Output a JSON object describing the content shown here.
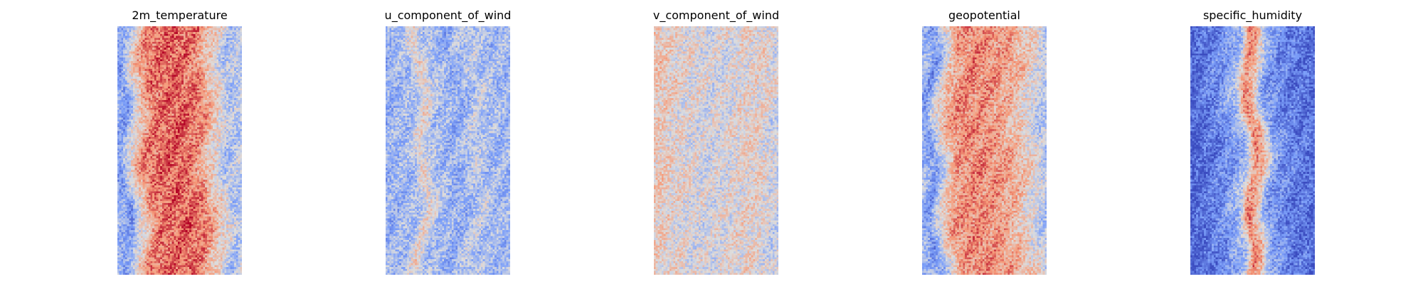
{
  "chart_data": [
    {
      "type": "heatmap",
      "title": "2m_temperature",
      "colormap": "coolwarm",
      "grid": false,
      "axes": "off",
      "grid_size": [
        64,
        128
      ],
      "value_range": [
        -1,
        1
      ],
      "approx_column_profile": [
        {
          "x": 0.0,
          "v": -0.35
        },
        {
          "x": 0.06,
          "v": -0.55
        },
        {
          "x": 0.12,
          "v": -0.1
        },
        {
          "x": 0.22,
          "v": 0.4
        },
        {
          "x": 0.28,
          "v": 0.6
        },
        {
          "x": 0.5,
          "v": 0.72
        },
        {
          "x": 0.68,
          "v": 0.55
        },
        {
          "x": 0.76,
          "v": 0.25
        },
        {
          "x": 0.84,
          "v": 0.05
        },
        {
          "x": 0.92,
          "v": -0.25
        },
        {
          "x": 1.0,
          "v": -0.15
        }
      ]
    },
    {
      "type": "heatmap",
      "title": "u_component_of_wind",
      "colormap": "coolwarm",
      "grid": false,
      "axes": "off",
      "grid_size": [
        64,
        128
      ],
      "value_range": [
        -1,
        1
      ],
      "approx_column_profile": [
        {
          "x": 0.0,
          "v": -0.35
        },
        {
          "x": 0.2,
          "v": -0.25
        },
        {
          "x": 0.28,
          "v": 0.1
        },
        {
          "x": 0.36,
          "v": -0.2
        },
        {
          "x": 0.55,
          "v": -0.4
        },
        {
          "x": 0.72,
          "v": -0.15
        },
        {
          "x": 0.85,
          "v": -0.3
        },
        {
          "x": 1.0,
          "v": -0.3
        }
      ]
    },
    {
      "type": "heatmap",
      "title": "v_component_of_wind",
      "colormap": "coolwarm",
      "grid": false,
      "axes": "off",
      "grid_size": [
        64,
        128
      ],
      "value_range": [
        -1,
        1
      ],
      "approx_column_profile": [
        {
          "x": 0.0,
          "v": 0.2
        },
        {
          "x": 0.2,
          "v": 0.05
        },
        {
          "x": 0.45,
          "v": -0.05
        },
        {
          "x": 0.7,
          "v": 0.05
        },
        {
          "x": 0.85,
          "v": 0.1
        },
        {
          "x": 1.0,
          "v": -0.1
        }
      ]
    },
    {
      "type": "heatmap",
      "title": "geopotential",
      "colormap": "coolwarm",
      "grid": false,
      "axes": "off",
      "grid_size": [
        64,
        128
      ],
      "value_range": [
        -1,
        1
      ],
      "approx_column_profile": [
        {
          "x": 0.0,
          "v": -0.3
        },
        {
          "x": 0.08,
          "v": -0.55
        },
        {
          "x": 0.15,
          "v": -0.1
        },
        {
          "x": 0.25,
          "v": 0.4
        },
        {
          "x": 0.4,
          "v": 0.55
        },
        {
          "x": 0.65,
          "v": 0.45
        },
        {
          "x": 0.8,
          "v": 0.25
        },
        {
          "x": 0.9,
          "v": 0.05
        },
        {
          "x": 1.0,
          "v": -0.2
        }
      ]
    },
    {
      "type": "heatmap",
      "title": "specific_humidity",
      "colormap": "coolwarm",
      "grid": false,
      "axes": "off",
      "grid_size": [
        64,
        128
      ],
      "value_range": [
        -1,
        1
      ],
      "approx_column_profile": [
        {
          "x": 0.0,
          "v": -0.85
        },
        {
          "x": 0.25,
          "v": -0.6
        },
        {
          "x": 0.4,
          "v": -0.25
        },
        {
          "x": 0.47,
          "v": 0.55
        },
        {
          "x": 0.53,
          "v": 0.35
        },
        {
          "x": 0.62,
          "v": -0.45
        },
        {
          "x": 0.8,
          "v": -0.7
        },
        {
          "x": 1.0,
          "v": -0.8
        }
      ]
    }
  ]
}
